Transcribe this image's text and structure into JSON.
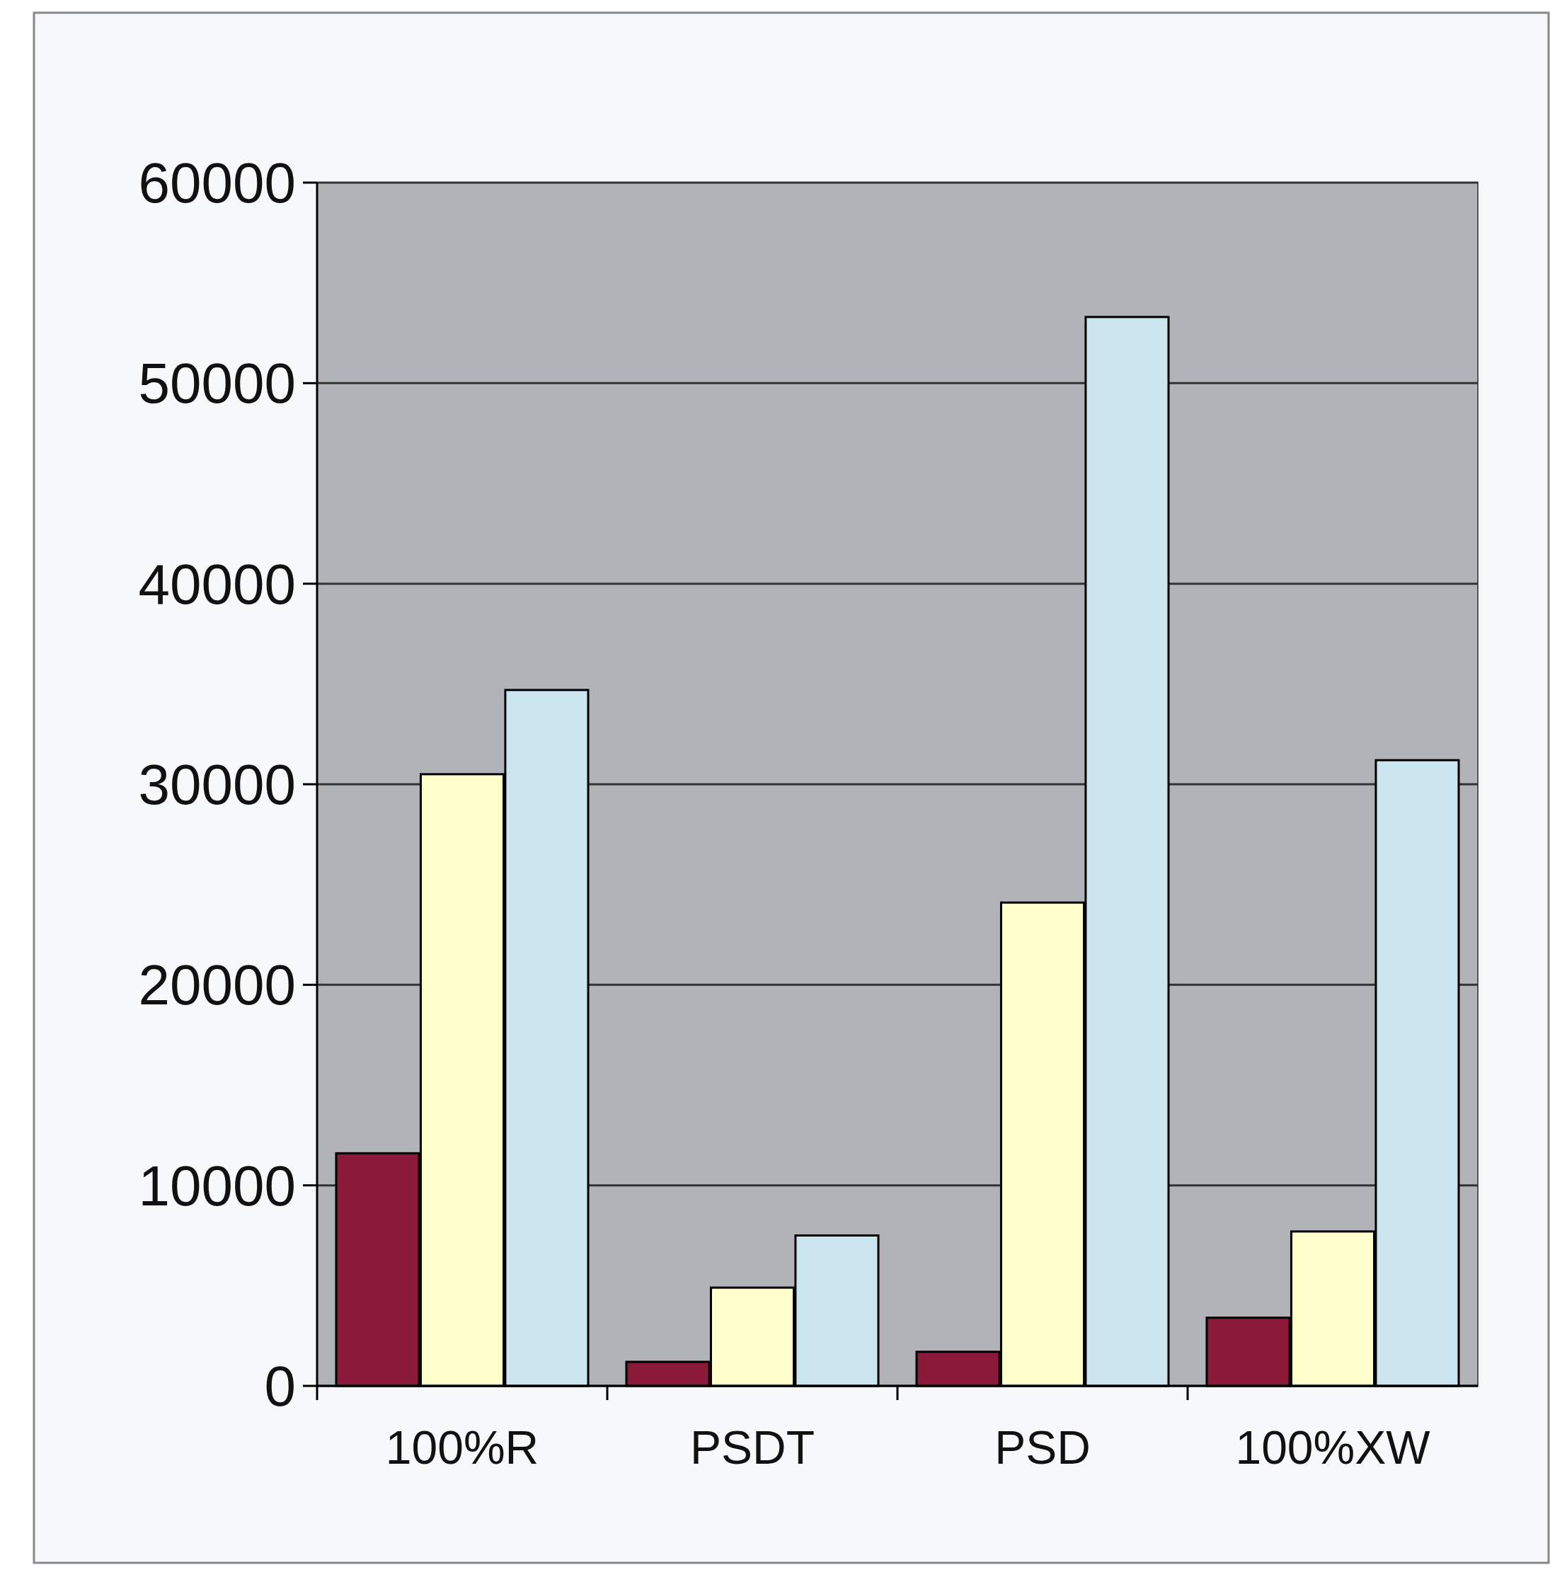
{
  "chart_data": {
    "type": "bar",
    "categories": [
      "100%R",
      "PSDT",
      "PSD",
      "100%XW"
    ],
    "series": [
      {
        "color": "#8b1a3a",
        "values": [
          11600,
          1200,
          1700,
          3400
        ]
      },
      {
        "color": "#ffffcc",
        "values": [
          30500,
          4900,
          24100,
          7700
        ]
      },
      {
        "color": "#cce6f0",
        "values": [
          34700,
          7500,
          53300,
          31200
        ]
      }
    ],
    "ylim": [
      0,
      60000
    ],
    "yticks": [
      0,
      10000,
      20000,
      30000,
      40000,
      50000,
      60000
    ],
    "grid": "y"
  }
}
